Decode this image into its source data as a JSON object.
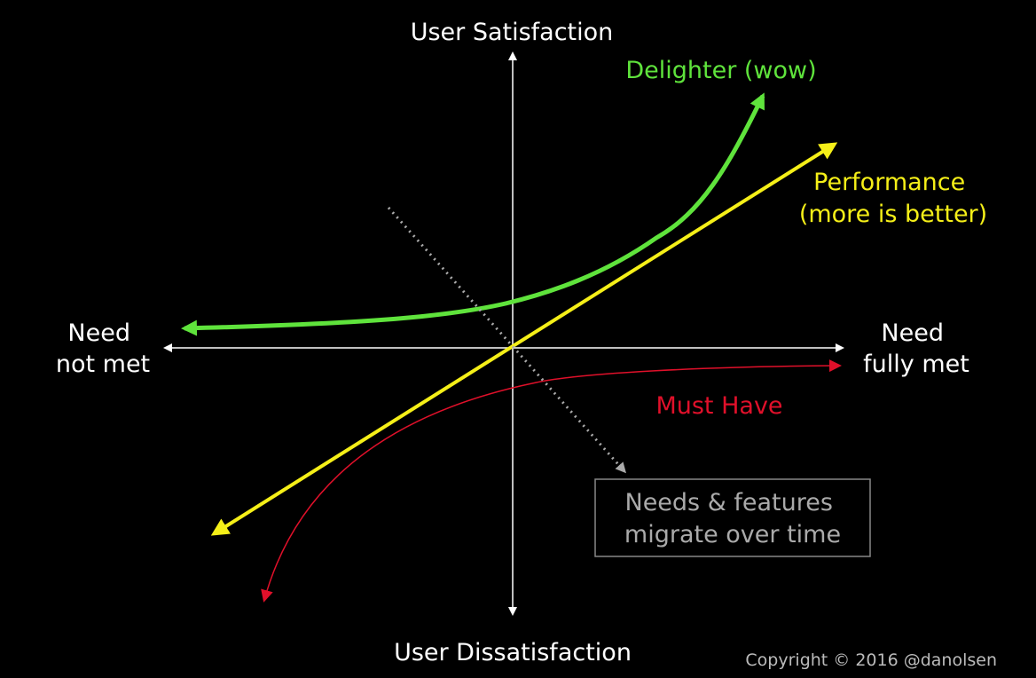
{
  "axes": {
    "top": "User Satisfaction",
    "bottom": "User Dissatisfaction",
    "left": [
      "Need",
      "not met"
    ],
    "right": [
      "Need",
      "fully met"
    ]
  },
  "curves": [
    {
      "label": [
        "Delighter (wow)"
      ]
    },
    {
      "label": [
        "Performance",
        "(more is better)"
      ]
    },
    {
      "label": [
        "Must Have"
      ]
    }
  ],
  "note": [
    "Needs & features",
    "migrate over time"
  ],
  "copyright": "Copyright © 2016 @danolsen"
}
